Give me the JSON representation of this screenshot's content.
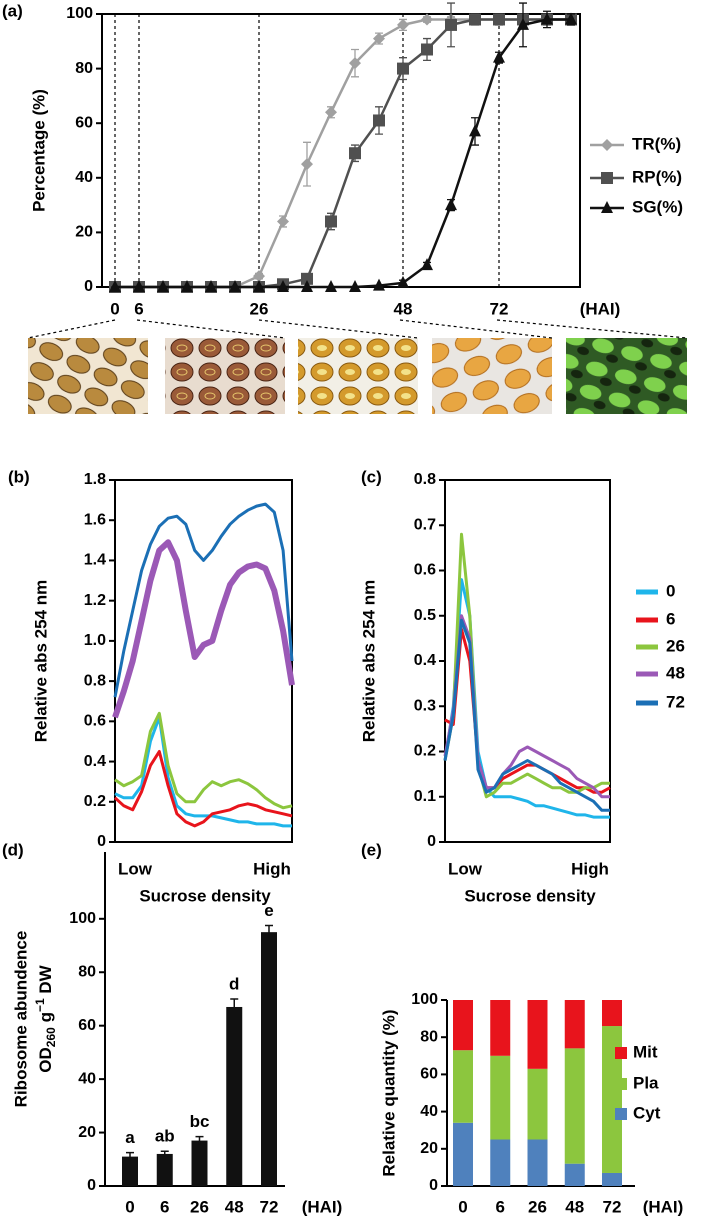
{
  "chart_data": [
    {
      "type": "line",
      "panel": "(a)",
      "ylabel": "Percentage (%)",
      "xlabel": "(HAI)",
      "categories": [
        "0",
        "6",
        null,
        null,
        null,
        null,
        "26",
        null,
        null,
        null,
        null,
        null,
        "48",
        null,
        null,
        null,
        "72",
        null,
        null,
        null
      ],
      "ylim": [
        0,
        100
      ],
      "yticks": [
        0,
        20,
        40,
        60,
        80,
        100
      ],
      "frame": true,
      "guides": true,
      "legend": "right",
      "series": [
        {
          "name": "TR(%)",
          "color": "#a0a0a0",
          "marker": "diamond",
          "values": [
            0,
            0,
            0,
            0,
            0,
            0,
            4,
            24,
            45,
            64,
            82,
            91,
            96,
            98,
            98,
            98,
            98,
            98,
            98,
            98
          ],
          "errors": [
            0,
            0,
            0,
            0,
            0,
            0,
            1,
            2,
            8,
            2,
            5,
            2,
            2,
            1,
            1,
            1,
            1,
            1,
            1,
            1
          ]
        },
        {
          "name": "RP(%)",
          "color": "#505050",
          "marker": "square",
          "values": [
            0,
            0,
            0,
            0,
            0,
            0,
            0,
            1,
            3,
            24,
            49,
            61,
            80,
            87,
            96,
            98,
            98,
            98,
            98,
            98
          ],
          "errors": [
            0,
            0,
            0,
            0,
            0,
            0,
            0,
            0,
            1,
            3,
            3,
            5,
            4,
            4,
            8,
            2,
            2,
            2,
            2,
            2
          ]
        },
        {
          "name": "SG(%)",
          "color": "#111111",
          "marker": "triangle",
          "values": [
            0,
            0,
            0,
            0,
            0,
            0,
            0,
            0,
            0,
            0,
            0,
            0.5,
            1.5,
            8,
            30,
            57,
            84,
            96,
            98,
            98
          ],
          "errors": [
            0,
            0,
            0,
            0,
            0,
            0,
            0,
            0,
            0,
            0,
            0,
            0,
            1,
            1,
            2,
            5,
            2,
            8,
            3,
            2
          ]
        }
      ]
    },
    {
      "type": "line",
      "panel": "(b)",
      "ylabel": "Relative abs 254 nm",
      "xlabel": "Sucrose density",
      "categories": [
        "Low",
        null,
        null,
        null,
        null,
        null,
        null,
        null,
        null,
        null,
        null,
        null,
        null,
        null,
        null,
        null,
        null,
        null,
        null,
        null,
        "High"
      ],
      "ylim": [
        0,
        1.8
      ],
      "yticks": [
        0,
        0.2,
        0.4,
        0.6,
        0.8,
        {
          "value": 1,
          "label": "1.0"
        },
        1.2,
        1.4,
        1.6,
        1.8
      ],
      "frame": true,
      "series": [
        {
          "color": "#1fb5ea",
          "values": [
            0.24,
            0.22,
            0.22,
            0.28,
            0.5,
            0.62,
            0.32,
            0.18,
            0.14,
            0.13,
            0.13,
            0.13,
            0.12,
            0.11,
            0.1,
            0.1,
            0.09,
            0.09,
            0.09,
            0.08,
            0.08
          ]
        },
        {
          "color": "#e8141c",
          "values": [
            0.22,
            0.18,
            0.16,
            0.25,
            0.38,
            0.45,
            0.28,
            0.14,
            0.1,
            0.08,
            0.1,
            0.14,
            0.15,
            0.16,
            0.18,
            0.19,
            0.18,
            0.16,
            0.15,
            0.14,
            0.13
          ]
        },
        {
          "color": "#8cc63e",
          "values": [
            0.31,
            0.28,
            0.3,
            0.33,
            0.55,
            0.64,
            0.38,
            0.24,
            0.2,
            0.2,
            0.26,
            0.3,
            0.28,
            0.3,
            0.31,
            0.29,
            0.26,
            0.22,
            0.19,
            0.17,
            0.18
          ]
        },
        {
          "color": "#9b59b6",
          "values": [
            0.62,
            0.75,
            0.9,
            1.1,
            1.3,
            1.45,
            1.49,
            1.4,
            1.15,
            0.92,
            0.98,
            1.0,
            1.15,
            1.28,
            1.34,
            1.37,
            1.38,
            1.36,
            1.25,
            1.05,
            0.78
          ]
        },
        {
          "color": "#1b6fb5",
          "values": [
            0.72,
            0.95,
            1.15,
            1.35,
            1.48,
            1.57,
            1.61,
            1.62,
            1.58,
            1.45,
            1.4,
            1.45,
            1.52,
            1.58,
            1.62,
            1.65,
            1.67,
            1.68,
            1.64,
            1.45,
            0.9
          ]
        }
      ]
    },
    {
      "type": "line",
      "panel": "(c)",
      "ylabel": "Relative abs 254 nm",
      "xlabel": "Sucrose density",
      "categories": [
        "Low",
        null,
        null,
        null,
        null,
        null,
        null,
        null,
        null,
        null,
        null,
        null,
        null,
        null,
        null,
        null,
        null,
        null,
        null,
        null,
        "High"
      ],
      "ylim": [
        0,
        0.8
      ],
      "yticks": [
        0,
        0.1,
        0.2,
        0.3,
        0.4,
        0.5,
        0.6,
        0.7,
        0.8
      ],
      "frame": true,
      "legend": "right",
      "series": [
        {
          "name": "0",
          "color": "#1fb5ea",
          "values": [
            0.18,
            0.3,
            0.58,
            0.5,
            0.2,
            0.12,
            0.1,
            0.1,
            0.1,
            0.095,
            0.09,
            0.08,
            0.08,
            0.075,
            0.07,
            0.065,
            0.06,
            0.06,
            0.055,
            0.055,
            0.055
          ]
        },
        {
          "name": "6",
          "color": "#e8141c",
          "values": [
            0.27,
            0.26,
            0.47,
            0.4,
            0.18,
            0.12,
            0.12,
            0.14,
            0.15,
            0.16,
            0.17,
            0.17,
            0.16,
            0.15,
            0.14,
            0.13,
            0.12,
            0.12,
            0.11,
            0.11,
            0.12
          ]
        },
        {
          "name": "26",
          "color": "#8cc63e",
          "values": [
            0.18,
            0.28,
            0.68,
            0.5,
            0.17,
            0.1,
            0.11,
            0.13,
            0.13,
            0.14,
            0.15,
            0.14,
            0.13,
            0.12,
            0.12,
            0.11,
            0.11,
            0.12,
            0.12,
            0.13,
            0.13
          ]
        },
        {
          "name": "48",
          "color": "#9b59b6",
          "values": [
            0.19,
            0.29,
            0.5,
            0.45,
            0.18,
            0.12,
            0.12,
            0.15,
            0.17,
            0.2,
            0.21,
            0.2,
            0.19,
            0.18,
            0.17,
            0.16,
            0.14,
            0.13,
            0.12,
            0.1,
            0.1
          ]
        },
        {
          "name": "72",
          "color": "#1b6fb5",
          "values": [
            0.18,
            0.28,
            0.49,
            0.44,
            0.16,
            0.11,
            0.12,
            0.15,
            0.16,
            0.17,
            0.18,
            0.17,
            0.16,
            0.15,
            0.13,
            0.12,
            0.11,
            0.1,
            0.09,
            0.07,
            0.07
          ]
        }
      ]
    },
    {
      "type": "bar",
      "panel": "(d)",
      "ylabel": "Ribosome abundence",
      "ylabel2": [
        "OD",
        "260",
        " g",
        "−1",
        " DW"
      ],
      "xlabel": "(HAI)",
      "categories": [
        "0",
        "6",
        "26",
        "48",
        "72"
      ],
      "ylim": [
        0,
        125
      ],
      "yticks": [
        0,
        20,
        40,
        60,
        80,
        100
      ],
      "frame": false,
      "color": "#111111",
      "values": [
        11,
        12,
        17,
        67,
        95
      ],
      "errors": [
        1.5,
        1,
        1.5,
        3,
        2.5
      ],
      "annotations": [
        "a",
        "ab",
        "bc",
        "d",
        "e"
      ]
    },
    {
      "type": "stacked_bar",
      "panel": "(e)",
      "ylabel": "Relative quantity (%)",
      "xlabel": "(HAI)",
      "categories": [
        "0",
        "6",
        "26",
        "48",
        "72"
      ],
      "ylim": [
        0,
        100
      ],
      "yticks": [
        0,
        20,
        40,
        60,
        80,
        100
      ],
      "frame": false,
      "legend": "right",
      "series": [
        {
          "name": "Cyt",
          "color": "#4f81bd",
          "values": [
            34,
            25,
            25,
            12,
            7
          ]
        },
        {
          "name": "Pla",
          "color": "#8cc63e",
          "values": [
            39,
            45,
            38,
            62,
            79
          ]
        },
        {
          "name": "Mit",
          "color": "#e8141c",
          "values": [
            27,
            30,
            37,
            26,
            14
          ]
        }
      ]
    }
  ]
}
